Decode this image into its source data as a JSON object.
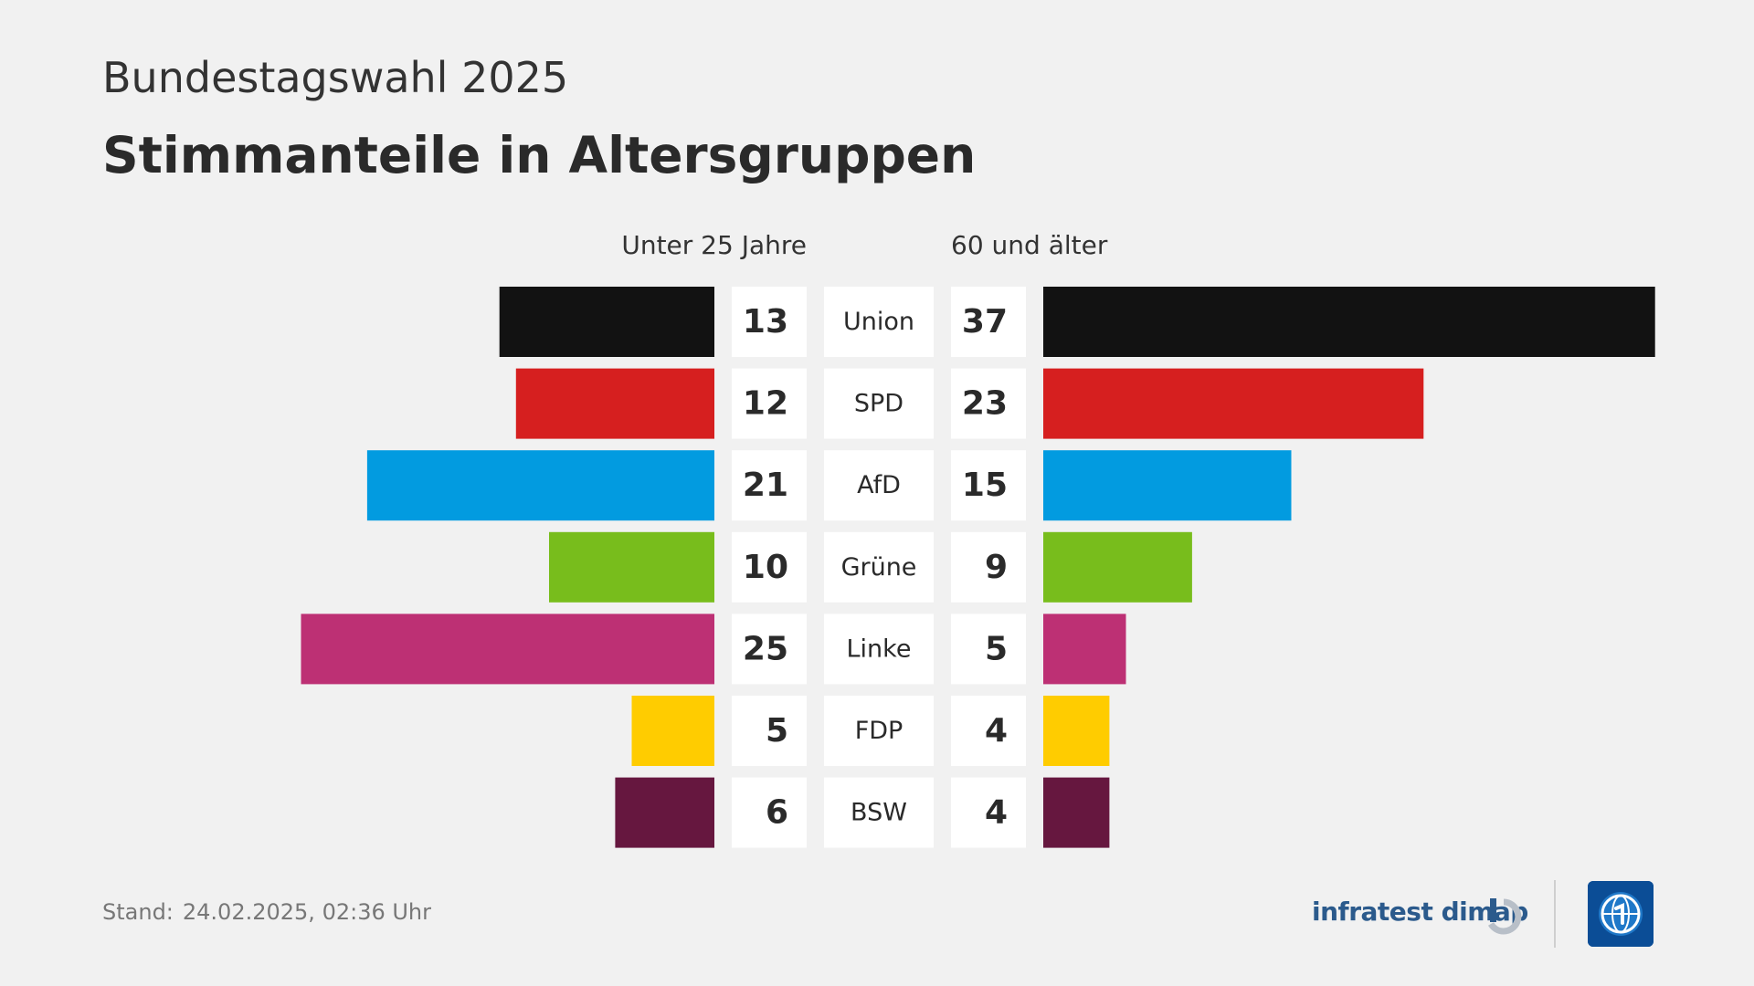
{
  "header": {
    "supertitle": "Bundestagswahl 2025",
    "title": "Stimmanteile in Altersgruppen"
  },
  "chart_data": {
    "type": "bar",
    "layout": "butterfly",
    "title": "Stimmanteile in Altersgruppen",
    "categories": [
      "Union",
      "SPD",
      "AfD",
      "Grüne",
      "Linke",
      "FDP",
      "BSW"
    ],
    "series": [
      {
        "name": "Unter 25 Jahre",
        "side": "left",
        "values": [
          13,
          12,
          21,
          10,
          25,
          5,
          6
        ]
      },
      {
        "name": "60 und älter",
        "side": "right",
        "values": [
          37,
          23,
          15,
          9,
          5,
          4,
          4
        ]
      }
    ],
    "colors": [
      "#121212",
      "#d61f1f",
      "#029be0",
      "#78bd1c",
      "#bd3074",
      "#ffcc00",
      "#66173f"
    ],
    "unit": "%"
  },
  "footer": {
    "stand_label": "Stand:",
    "stand_date": "24.02.2025, 02:36 Uhr",
    "brand": "infratest dimap"
  },
  "theme": {
    "background": "#f1f1f1",
    "cell": "#ffffff",
    "text": "#2a2a2a",
    "brand": "#2b5a8c",
    "logo": "#0b4d96"
  }
}
